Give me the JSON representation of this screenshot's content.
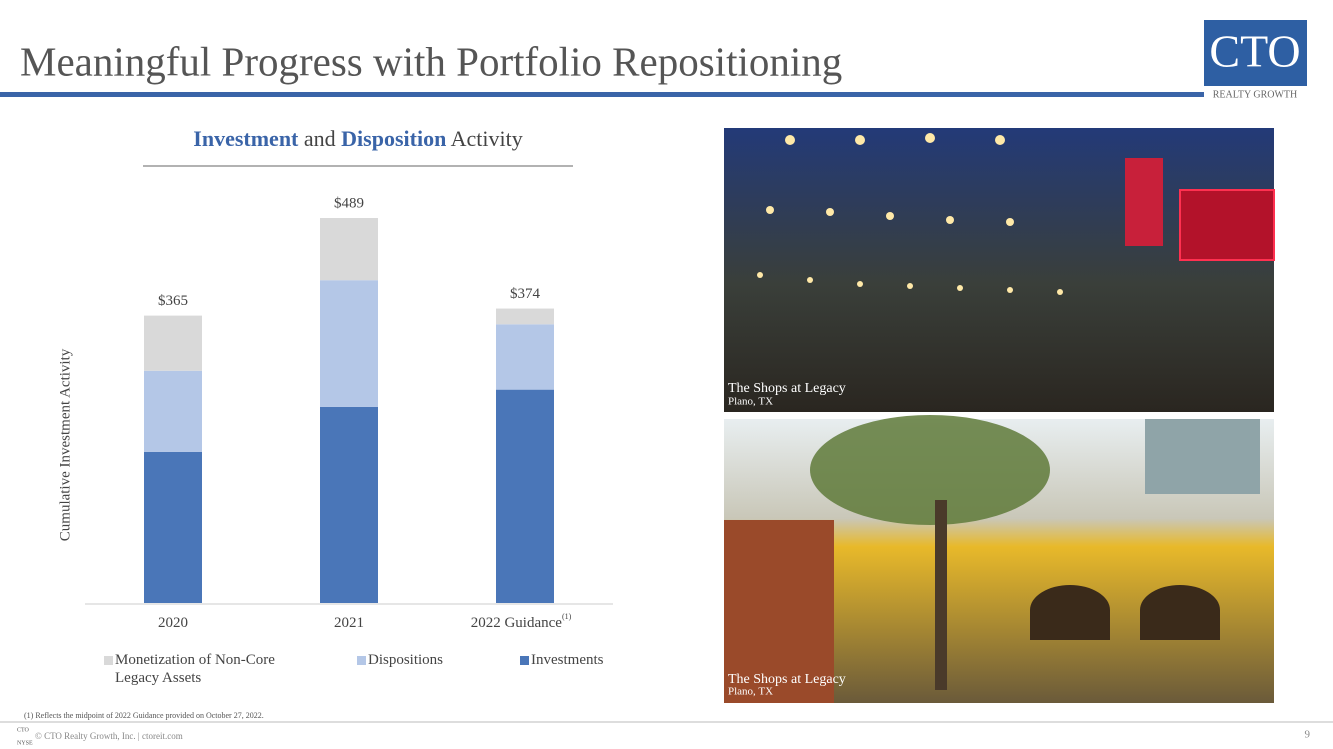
{
  "header": {
    "title": "Meaningful Progress with Portfolio Repositioning",
    "logo": "CTO",
    "logo_subtitle": "REALTY GROWTH"
  },
  "chart_data": {
    "type": "stacked-bar",
    "title_parts": [
      "Investment",
      "and",
      "Disposition",
      "Activity"
    ],
    "ylabel": "Cumulative Investment Activity",
    "categories": [
      "2020",
      "2021",
      "2022 Guidance"
    ],
    "footnote_marker": "(1)",
    "series": [
      {
        "name": "Monetization of Non-Core Legacy Assets",
        "color": "#d9d9d9",
        "values": [
          70,
          79,
          20
        ]
      },
      {
        "name": "Dispositions",
        "color": "#b4c7e7",
        "values": [
          103,
          161,
          83
        ]
      },
      {
        "name": "Investments",
        "color": "#4a76b8",
        "values": [
          192,
          249,
          271
        ]
      }
    ],
    "totals": [
      365,
      489,
      374
    ],
    "total_labels": [
      "$365",
      "$489",
      "$374"
    ]
  },
  "photos": [
    {
      "caption": "The Shops at Legacy",
      "location": "Plano, TX"
    },
    {
      "caption": "The Shops at Legacy",
      "location": "Plano, TX"
    }
  ],
  "footer": {
    "footnote": "(1)  Reflects the midpoint of 2022 Guidance provided on October 27, 2022.",
    "copyright": "© CTO Realty Growth, Inc. | ctoreit.com",
    "badge_top": "CTO",
    "badge_bottom": "NYSE",
    "page": "9"
  }
}
